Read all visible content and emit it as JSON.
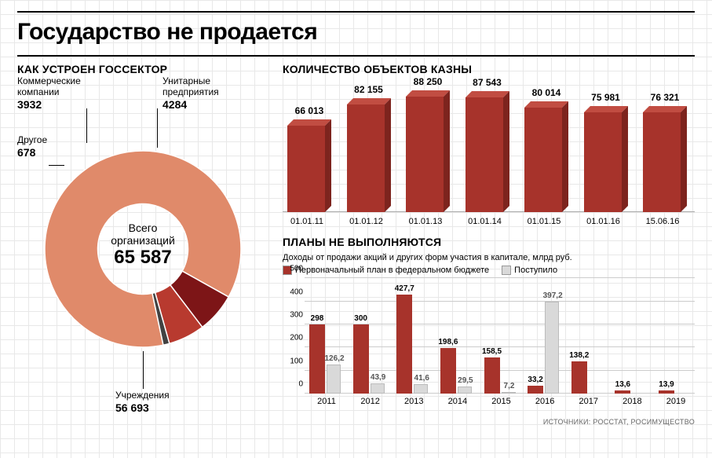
{
  "title": "Государство не продается",
  "background_color": "#ffffff",
  "grid_color": "#e8e8e8",
  "donut": {
    "title": "КАК УСТРОЕН ГОССЕКТОР",
    "center_line1": "Всего",
    "center_line2": "организаций",
    "center_value": "65 587",
    "slices": [
      {
        "name": "Учреждения",
        "value": 56693,
        "label": "Учреждения",
        "value_str": "56 693",
        "color": "#e08a6a"
      },
      {
        "name": "Унитарные предприятия",
        "value": 4284,
        "label": "Унитарные\nпредприятия",
        "value_str": "4284",
        "color": "#7d1517"
      },
      {
        "name": "Коммерческие компании",
        "value": 3932,
        "label": "Коммерческие\nкомпании",
        "value_str": "3932",
        "color": "#b83a2f"
      },
      {
        "name": "Другое",
        "value": 678,
        "label": "Другое",
        "value_str": "678",
        "color": "#424242"
      }
    ],
    "inner_radius_ratio": 0.46,
    "start_angle_deg": 78,
    "colors": {
      "stroke": "#ffffff"
    }
  },
  "bars_top": {
    "title": "КОЛИЧЕСТВО ОБЪЕКТОВ КАЗНЫ",
    "type": "bar3d",
    "max": 90000,
    "bar_color_front": "#a7332b",
    "bar_color_top": "#c14d42",
    "bar_color_side": "#7d241e",
    "categories": [
      "01.01.11",
      "01.01.12",
      "01.01.13",
      "01.01.14",
      "01.01.15",
      "01.01.16",
      "15.06.16"
    ],
    "values": [
      66013,
      82155,
      88250,
      87543,
      80014,
      75981,
      76321
    ],
    "value_labels": [
      "66 013",
      "82 155",
      "88 250",
      "87 543",
      "80 014",
      "75 981",
      "76 321"
    ],
    "label_fontsize": 12
  },
  "bars_bottom": {
    "title": "ПЛАНЫ НЕ ВЫПОЛНЯЮТСЯ",
    "subtitle": "Доходы от продажи акций и других форм участия в капитале, млрд руб.",
    "type": "grouped-bar",
    "legend": [
      {
        "label": "Первоначальный план в федеральном бюджете",
        "color": "#a7332b"
      },
      {
        "label": "Поступило",
        "color": "#d9d9d9"
      }
    ],
    "ylim": [
      0,
      500
    ],
    "ytick_step": 100,
    "categories": [
      "2011",
      "2012",
      "2013",
      "2014",
      "2015",
      "2016",
      "2017",
      "2018",
      "2019"
    ],
    "plan": [
      298,
      300,
      427.7,
      198.6,
      158.5,
      33.2,
      138.2,
      13.6,
      13.9
    ],
    "actual": [
      126.2,
      43.9,
      41.6,
      29.5,
      7.2,
      397.2,
      null,
      null,
      null
    ],
    "plan_labels": [
      "298",
      "300",
      "427,7",
      "198,6",
      "158,5",
      "33,2",
      "138,2",
      "13,6",
      "13,9"
    ],
    "actual_labels": [
      "126,2",
      "43,9",
      "41,6",
      "29,5",
      "7,2",
      "397,2",
      "",
      "",
      ""
    ],
    "plan_color": "#a7332b",
    "actual_color": "#d9d9d9",
    "grid_color": "#cccccc"
  },
  "source": "ИСТОЧНИКИ: РОССТАТ, РОСИМУЩЕСТВО"
}
